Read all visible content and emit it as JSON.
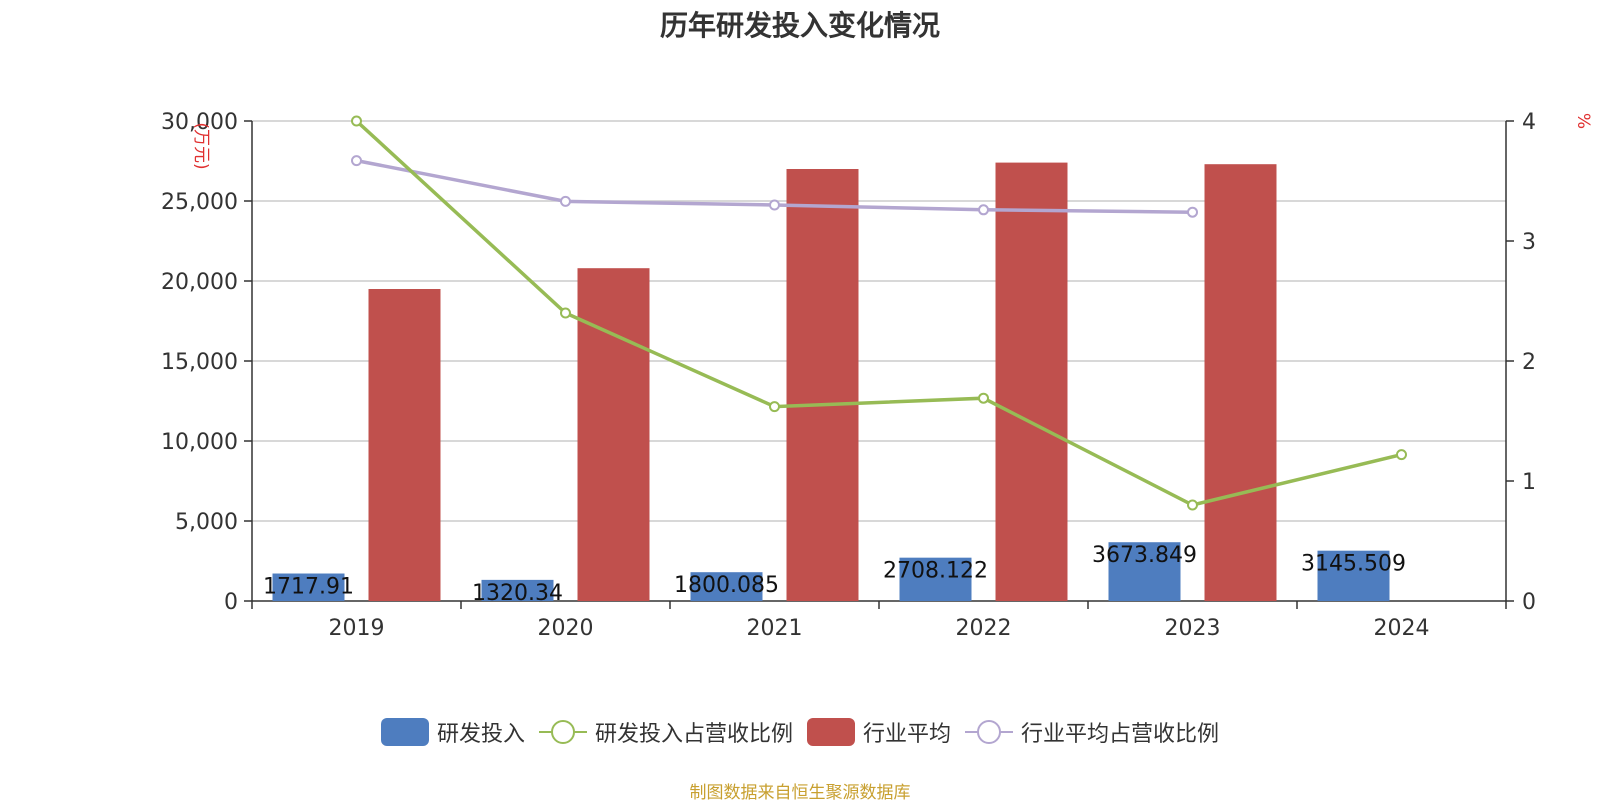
{
  "title": "历年研发投入变化情况",
  "source": "制图数据来自恒生聚源数据库",
  "colors": {
    "rd": "#4e7dbf",
    "rd_ratio": "#97bb55",
    "industry": "#c0504d",
    "industry_ratio": "#b3a6d0",
    "axis_unit": "#e03030",
    "grid": "#cccccc"
  },
  "legend": [
    {
      "label": "研发投入",
      "type": "bar",
      "color_key": "rd"
    },
    {
      "label": "研发投入占营收比例",
      "type": "line",
      "color_key": "rd_ratio"
    },
    {
      "label": "行业平均",
      "type": "bar",
      "color_key": "industry"
    },
    {
      "label": "行业平均占营收比例",
      "type": "line",
      "color_key": "industry_ratio"
    }
  ],
  "chart_data": {
    "type": "bar",
    "title": "历年研发投入变化情况",
    "categories": [
      "2019",
      "2020",
      "2021",
      "2022",
      "2023",
      "2024"
    ],
    "y_left": {
      "label": "(万元)",
      "range": [
        0,
        30000
      ],
      "ticks": [
        0,
        5000,
        10000,
        15000,
        20000,
        25000,
        30000
      ],
      "tick_labels": [
        "0",
        "5,000",
        "10,000",
        "15,000",
        "20,000",
        "25,000",
        "30,000"
      ]
    },
    "y_right": {
      "label": "%",
      "range": [
        0,
        4
      ],
      "ticks": [
        0,
        1,
        2,
        3,
        4
      ],
      "tick_labels": [
        "0",
        "1",
        "2",
        "3",
        "4"
      ]
    },
    "grid": true,
    "legend_position": "bottom",
    "series": [
      {
        "name": "研发投入",
        "type": "bar",
        "axis": "left",
        "color_key": "rd",
        "values": [
          1717.91,
          1320.34,
          1800.085,
          2708.122,
          3673.849,
          3145.509
        ],
        "data_labels": [
          "1717.91",
          "1320.34",
          "1800.085",
          "2708.122",
          "3673.849",
          "3145.509"
        ]
      },
      {
        "name": "行业平均",
        "type": "bar",
        "axis": "left",
        "color_key": "industry",
        "values": [
          19500,
          20800,
          27000,
          27400,
          27300,
          null
        ]
      },
      {
        "name": "研发投入占营收比例",
        "type": "line",
        "axis": "right",
        "color_key": "rd_ratio",
        "values": [
          4.0,
          2.4,
          1.62,
          1.69,
          0.8,
          1.22
        ]
      },
      {
        "name": "行业平均占营收比例",
        "type": "line",
        "axis": "right",
        "color_key": "industry_ratio",
        "values": [
          3.67,
          3.33,
          3.3,
          3.26,
          3.24,
          null
        ]
      }
    ]
  }
}
